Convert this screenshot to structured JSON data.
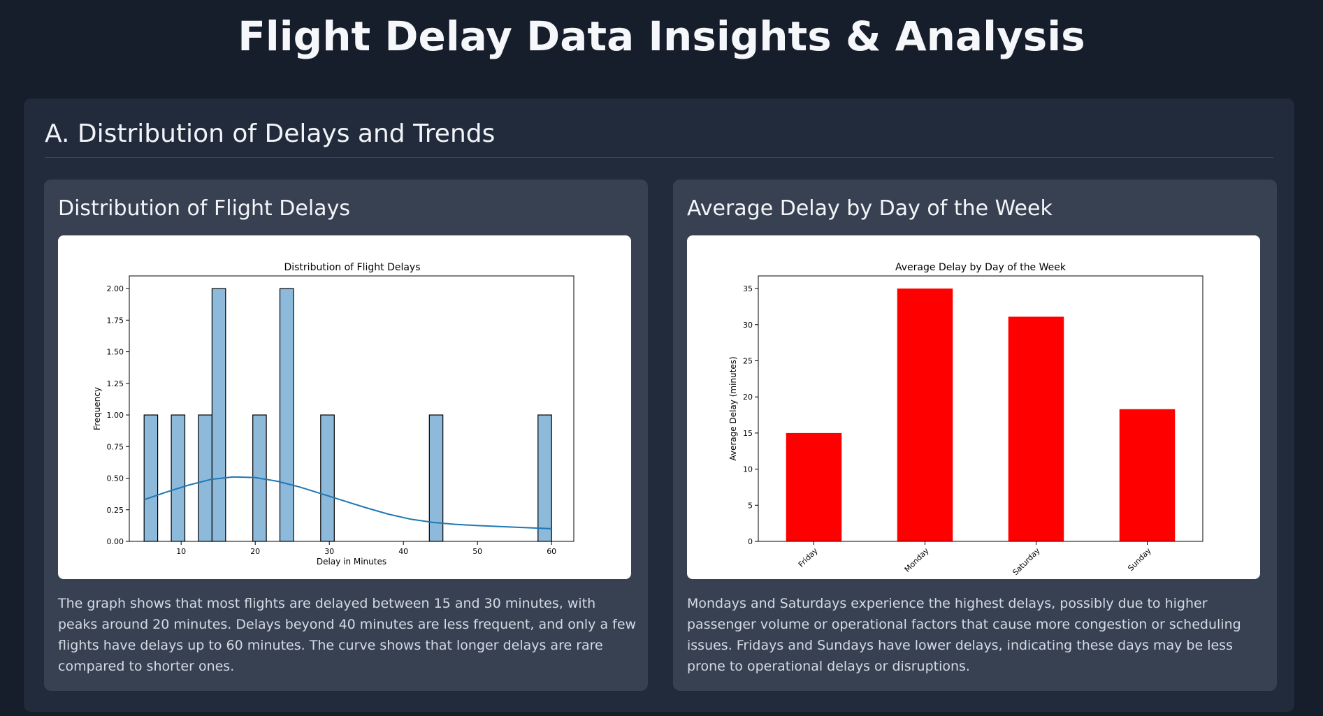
{
  "page": {
    "title": "Flight Delay Data Insights & Analysis"
  },
  "section": {
    "title": "A. Distribution of Delays and Trends"
  },
  "cards": [
    {
      "title": "Distribution of Flight Delays",
      "description": "The graph shows that most flights are delayed between 15 and 30 minutes, with peaks around 20 minutes. Delays beyond 40 minutes are less frequent, and only a few flights have delays up to 60 minutes. The curve shows that longer delays are rare compared to shorter ones."
    },
    {
      "title": "Average Delay by Day of the Week",
      "description": "Mondays and Saturdays experience the highest delays, possibly due to higher passenger volume or operational factors that cause more congestion or scheduling issues. Fridays and Sundays have lower delays, indicating these days may be less prone to operational delays or disruptions."
    }
  ],
  "chart_data": [
    {
      "type": "bar",
      "subtype": "histogram",
      "title": "Distribution of Flight Delays",
      "xlabel": "Delay in Minutes",
      "ylabel": "Frequency",
      "xlim": [
        3,
        63
      ],
      "ylim": [
        0,
        2.1
      ],
      "xticks": [
        10,
        20,
        30,
        40,
        50,
        60
      ],
      "yticks": [
        "0.00",
        "0.25",
        "0.50",
        "0.75",
        "1.00",
        "1.25",
        "1.50",
        "1.75",
        "2.00"
      ],
      "bars": [
        {
          "x0": 5.0,
          "x1": 6.83,
          "value": 1
        },
        {
          "x0": 8.67,
          "x1": 10.5,
          "value": 1
        },
        {
          "x0": 12.33,
          "x1": 14.17,
          "value": 1
        },
        {
          "x0": 14.17,
          "x1": 16.0,
          "value": 2
        },
        {
          "x0": 19.67,
          "x1": 21.5,
          "value": 1
        },
        {
          "x0": 23.33,
          "x1": 25.17,
          "value": 2
        },
        {
          "x0": 28.83,
          "x1": 30.67,
          "value": 1
        },
        {
          "x0": 43.5,
          "x1": 45.33,
          "value": 1
        },
        {
          "x0": 58.17,
          "x1": 60.0,
          "value": 1
        }
      ],
      "bar_color": "#8db9da",
      "kde": {
        "x": [
          5,
          8,
          11,
          14,
          17,
          20,
          23,
          26,
          29,
          32,
          35,
          38,
          41,
          44,
          47,
          50,
          53,
          56,
          60
        ],
        "y": [
          0.33,
          0.39,
          0.445,
          0.49,
          0.51,
          0.505,
          0.475,
          0.43,
          0.375,
          0.32,
          0.265,
          0.215,
          0.175,
          0.15,
          0.135,
          0.125,
          0.117,
          0.11,
          0.1
        ]
      },
      "kde_color": "#1f77b4",
      "grid": false
    },
    {
      "type": "bar",
      "title": "Average Delay by Day of the Week",
      "xlabel": "",
      "ylabel": "Average Delay (minutes)",
      "categories": [
        "Friday",
        "Monday",
        "Saturday",
        "Sunday"
      ],
      "values": [
        15,
        35,
        31.1,
        18.3
      ],
      "ylim": [
        0,
        36.75
      ],
      "yticks": [
        0,
        5,
        10,
        15,
        20,
        25,
        30,
        35
      ],
      "bar_color": "#ff0000",
      "grid": false
    }
  ]
}
